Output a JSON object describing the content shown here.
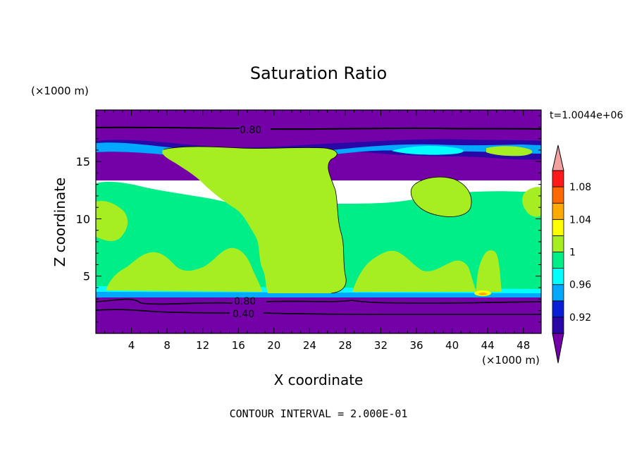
{
  "chart_data": {
    "type": "heatmap",
    "title": "Saturation Ratio",
    "xlabel": "X coordinate",
    "ylabel": "Z coordinate",
    "x_unit": "(×1000 m)",
    "y_unit": "(×1000 m)",
    "time_label": "t=1.0044e+06",
    "footer": "CONTOUR INTERVAL = 2.000E-01",
    "xlim": [
      0,
      50
    ],
    "ylim": [
      0,
      19.5
    ],
    "x_ticks": [
      "4",
      "8",
      "12",
      "16",
      "20",
      "24",
      "28",
      "32",
      "36",
      "40",
      "44",
      "48"
    ],
    "y_ticks": [
      "5",
      "10",
      "15"
    ],
    "contour_labels": [
      "0.80",
      "0.80",
      "0.40"
    ],
    "colorbar": {
      "tick_labels": [
        "0.92",
        "0.96",
        "1",
        "1.04",
        "1.08"
      ],
      "levels": [
        0.92,
        0.94,
        0.96,
        0.98,
        1.0,
        1.02,
        1.04,
        1.06,
        1.08
      ],
      "colors": [
        "#7400a8",
        "#2a08a8",
        "#0a1ed8",
        "#00a8ff",
        "#00ffff",
        "#00ee88",
        "#a6ee22",
        "#ffff00",
        "#ffaa00",
        "#ff6a00",
        "#ff1a1a",
        "#f5a0a0"
      ]
    },
    "bands": [
      {
        "z": [
          0.0,
          3.3
        ],
        "ratio": "< 0.92"
      },
      {
        "z": [
          3.3,
          13.5
        ],
        "ratio": "0.98 - 1.02"
      },
      {
        "z": [
          13.5,
          17.5
        ],
        "ratio": "0.92 - 0.98"
      },
      {
        "z": [
          17.5,
          19.5
        ],
        "ratio": "< 0.92"
      }
    ]
  }
}
